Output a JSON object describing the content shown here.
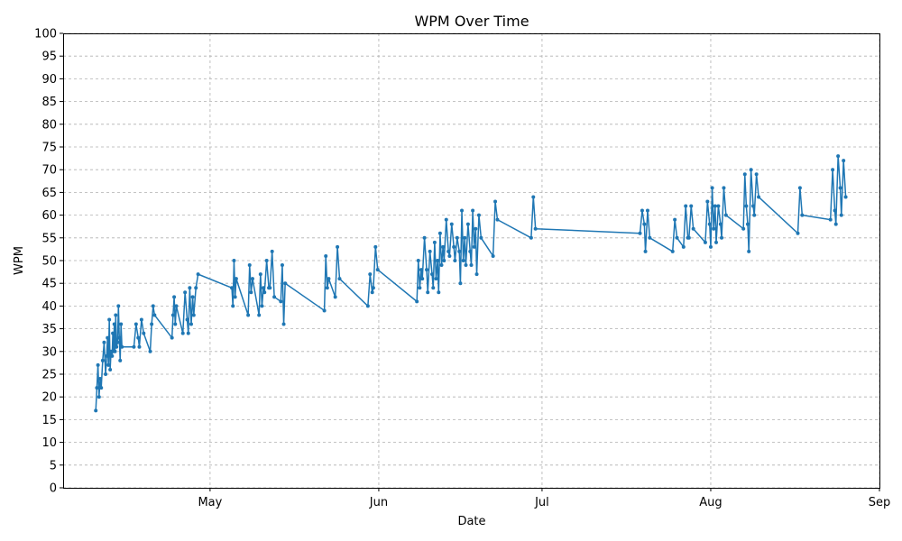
{
  "chart_data": {
    "type": "line",
    "title": "WPM Over Time",
    "xlabel": "Date",
    "ylabel": "WPM",
    "ylim": [
      0,
      100
    ],
    "yticks": [
      0,
      5,
      10,
      15,
      20,
      25,
      30,
      35,
      40,
      45,
      50,
      55,
      60,
      65,
      70,
      75,
      80,
      85,
      90,
      95,
      100
    ],
    "xlim": [
      "2025-04-04",
      "2025-09-01"
    ],
    "xticks": [
      {
        "date": "2025-05-01",
        "label": "May"
      },
      {
        "date": "2025-06-01",
        "label": "Jun"
      },
      {
        "date": "2025-07-01",
        "label": "Jul"
      },
      {
        "date": "2025-08-01",
        "label": "Aug"
      },
      {
        "date": "2025-09-01",
        "label": "Sep"
      }
    ],
    "grid": true,
    "color": "#1f77b4",
    "series": [
      {
        "points": [
          [
            "2025-04-10",
            17
          ],
          [
            "2025-04-10",
            22
          ],
          [
            "2025-04-10",
            27
          ],
          [
            "2025-04-10",
            20
          ],
          [
            "2025-04-10",
            24
          ],
          [
            "2025-04-11",
            22
          ],
          [
            "2025-04-11",
            28
          ],
          [
            "2025-04-11",
            32
          ],
          [
            "2025-04-11",
            25
          ],
          [
            "2025-04-12",
            29
          ],
          [
            "2025-04-12",
            33
          ],
          [
            "2025-04-12",
            27
          ],
          [
            "2025-04-12",
            37
          ],
          [
            "2025-04-12",
            26
          ],
          [
            "2025-04-12",
            30
          ],
          [
            "2025-04-13",
            29
          ],
          [
            "2025-04-13",
            34
          ],
          [
            "2025-04-13",
            30
          ],
          [
            "2025-04-13",
            36
          ],
          [
            "2025-04-13",
            30
          ],
          [
            "2025-04-13",
            38
          ],
          [
            "2025-04-13",
            31
          ],
          [
            "2025-04-14",
            32
          ],
          [
            "2025-04-14",
            40
          ],
          [
            "2025-04-14",
            33
          ],
          [
            "2025-04-14",
            28
          ],
          [
            "2025-04-14",
            36
          ],
          [
            "2025-04-14",
            31
          ],
          [
            "2025-04-17",
            31
          ],
          [
            "2025-04-17",
            36
          ],
          [
            "2025-04-17",
            33
          ],
          [
            "2025-04-18",
            31
          ],
          [
            "2025-04-18",
            37
          ],
          [
            "2025-04-18",
            34
          ],
          [
            "2025-04-20",
            30
          ],
          [
            "2025-04-20",
            36
          ],
          [
            "2025-04-20",
            40
          ],
          [
            "2025-04-20",
            38
          ],
          [
            "2025-04-24",
            33
          ],
          [
            "2025-04-24",
            38
          ],
          [
            "2025-04-24",
            42
          ],
          [
            "2025-04-24",
            36
          ],
          [
            "2025-04-24",
            40
          ],
          [
            "2025-04-26",
            34
          ],
          [
            "2025-04-26",
            43
          ],
          [
            "2025-04-26",
            37
          ],
          [
            "2025-04-27",
            34
          ],
          [
            "2025-04-27",
            44
          ],
          [
            "2025-04-27",
            36
          ],
          [
            "2025-04-27",
            42
          ],
          [
            "2025-04-28",
            38
          ],
          [
            "2025-04-28",
            44
          ],
          [
            "2025-04-28",
            47
          ],
          [
            "2025-05-05",
            44
          ],
          [
            "2025-05-05",
            40
          ],
          [
            "2025-05-05",
            50
          ],
          [
            "2025-05-05",
            42
          ],
          [
            "2025-05-05",
            46
          ],
          [
            "2025-05-08",
            38
          ],
          [
            "2025-05-08",
            49
          ],
          [
            "2025-05-08",
            43
          ],
          [
            "2025-05-08",
            46
          ],
          [
            "2025-05-10",
            38
          ],
          [
            "2025-05-10",
            47
          ],
          [
            "2025-05-10",
            40
          ],
          [
            "2025-05-10",
            44
          ],
          [
            "2025-05-11",
            43
          ],
          [
            "2025-05-11",
            50
          ],
          [
            "2025-05-11",
            44
          ],
          [
            "2025-05-12",
            44
          ],
          [
            "2025-05-12",
            52
          ],
          [
            "2025-05-12",
            42
          ],
          [
            "2025-05-14",
            41
          ],
          [
            "2025-05-14",
            49
          ],
          [
            "2025-05-14",
            36
          ],
          [
            "2025-05-14",
            45
          ],
          [
            "2025-05-22",
            39
          ],
          [
            "2025-05-22",
            51
          ],
          [
            "2025-05-22",
            44
          ],
          [
            "2025-05-22",
            46
          ],
          [
            "2025-05-24",
            42
          ],
          [
            "2025-05-24",
            53
          ],
          [
            "2025-05-24",
            46
          ],
          [
            "2025-05-30",
            40
          ],
          [
            "2025-05-30",
            47
          ],
          [
            "2025-05-30",
            43
          ],
          [
            "2025-05-31",
            44
          ],
          [
            "2025-05-31",
            53
          ],
          [
            "2025-05-31",
            48
          ],
          [
            "2025-06-08",
            41
          ],
          [
            "2025-06-08",
            50
          ],
          [
            "2025-06-08",
            44
          ],
          [
            "2025-06-08",
            48
          ],
          [
            "2025-06-09",
            46
          ],
          [
            "2025-06-09",
            55
          ],
          [
            "2025-06-09",
            48
          ],
          [
            "2025-06-10",
            43
          ],
          [
            "2025-06-10",
            52
          ],
          [
            "2025-06-10",
            47
          ],
          [
            "2025-06-11",
            44
          ],
          [
            "2025-06-11",
            54
          ],
          [
            "2025-06-11",
            46
          ],
          [
            "2025-06-11",
            50
          ],
          [
            "2025-06-12",
            43
          ],
          [
            "2025-06-12",
            56
          ],
          [
            "2025-06-12",
            49
          ],
          [
            "2025-06-12",
            53
          ],
          [
            "2025-06-13",
            50
          ],
          [
            "2025-06-13",
            59
          ],
          [
            "2025-06-13",
            52
          ],
          [
            "2025-06-14",
            51
          ],
          [
            "2025-06-14",
            58
          ],
          [
            "2025-06-14",
            53
          ],
          [
            "2025-06-15",
            50
          ],
          [
            "2025-06-15",
            55
          ],
          [
            "2025-06-15",
            52
          ],
          [
            "2025-06-16",
            45
          ],
          [
            "2025-06-16",
            61
          ],
          [
            "2025-06-16",
            50
          ],
          [
            "2025-06-16",
            55
          ],
          [
            "2025-06-17",
            49
          ],
          [
            "2025-06-17",
            58
          ],
          [
            "2025-06-17",
            52
          ],
          [
            "2025-06-18",
            49
          ],
          [
            "2025-06-18",
            61
          ],
          [
            "2025-06-18",
            53
          ],
          [
            "2025-06-18",
            57
          ],
          [
            "2025-06-19",
            47
          ],
          [
            "2025-06-19",
            60
          ],
          [
            "2025-06-19",
            55
          ],
          [
            "2025-06-22",
            51
          ],
          [
            "2025-06-22",
            63
          ],
          [
            "2025-06-22",
            59
          ],
          [
            "2025-06-29",
            55
          ],
          [
            "2025-06-29",
            64
          ],
          [
            "2025-06-29",
            57
          ],
          [
            "2025-07-19",
            56
          ],
          [
            "2025-07-19",
            61
          ],
          [
            "2025-07-19",
            58
          ],
          [
            "2025-07-20",
            52
          ],
          [
            "2025-07-20",
            61
          ],
          [
            "2025-07-20",
            55
          ],
          [
            "2025-07-25",
            52
          ],
          [
            "2025-07-25",
            59
          ],
          [
            "2025-07-25",
            55
          ],
          [
            "2025-07-27",
            53
          ],
          [
            "2025-07-27",
            62
          ],
          [
            "2025-07-27",
            55
          ],
          [
            "2025-07-28",
            55
          ],
          [
            "2025-07-28",
            62
          ],
          [
            "2025-07-28",
            57
          ],
          [
            "2025-07-31",
            54
          ],
          [
            "2025-07-31",
            63
          ],
          [
            "2025-07-31",
            58
          ],
          [
            "2025-08-01",
            53
          ],
          [
            "2025-08-01",
            66
          ],
          [
            "2025-08-01",
            57
          ],
          [
            "2025-08-01",
            62
          ],
          [
            "2025-08-02",
            54
          ],
          [
            "2025-08-02",
            62
          ],
          [
            "2025-08-02",
            58
          ],
          [
            "2025-08-03",
            55
          ],
          [
            "2025-08-03",
            66
          ],
          [
            "2025-08-03",
            60
          ],
          [
            "2025-08-07",
            57
          ],
          [
            "2025-08-07",
            69
          ],
          [
            "2025-08-07",
            62
          ],
          [
            "2025-08-07",
            58
          ],
          [
            "2025-08-08",
            52
          ],
          [
            "2025-08-08",
            70
          ],
          [
            "2025-08-08",
            62
          ],
          [
            "2025-08-09",
            60
          ],
          [
            "2025-08-09",
            69
          ],
          [
            "2025-08-09",
            64
          ],
          [
            "2025-08-17",
            56
          ],
          [
            "2025-08-17",
            66
          ],
          [
            "2025-08-17",
            60
          ],
          [
            "2025-08-23",
            59
          ],
          [
            "2025-08-23",
            70
          ],
          [
            "2025-08-23",
            61
          ],
          [
            "2025-08-24",
            58
          ],
          [
            "2025-08-24",
            73
          ],
          [
            "2025-08-24",
            66
          ],
          [
            "2025-08-25",
            60
          ],
          [
            "2025-08-25",
            72
          ],
          [
            "2025-08-25",
            64
          ]
        ]
      }
    ]
  }
}
